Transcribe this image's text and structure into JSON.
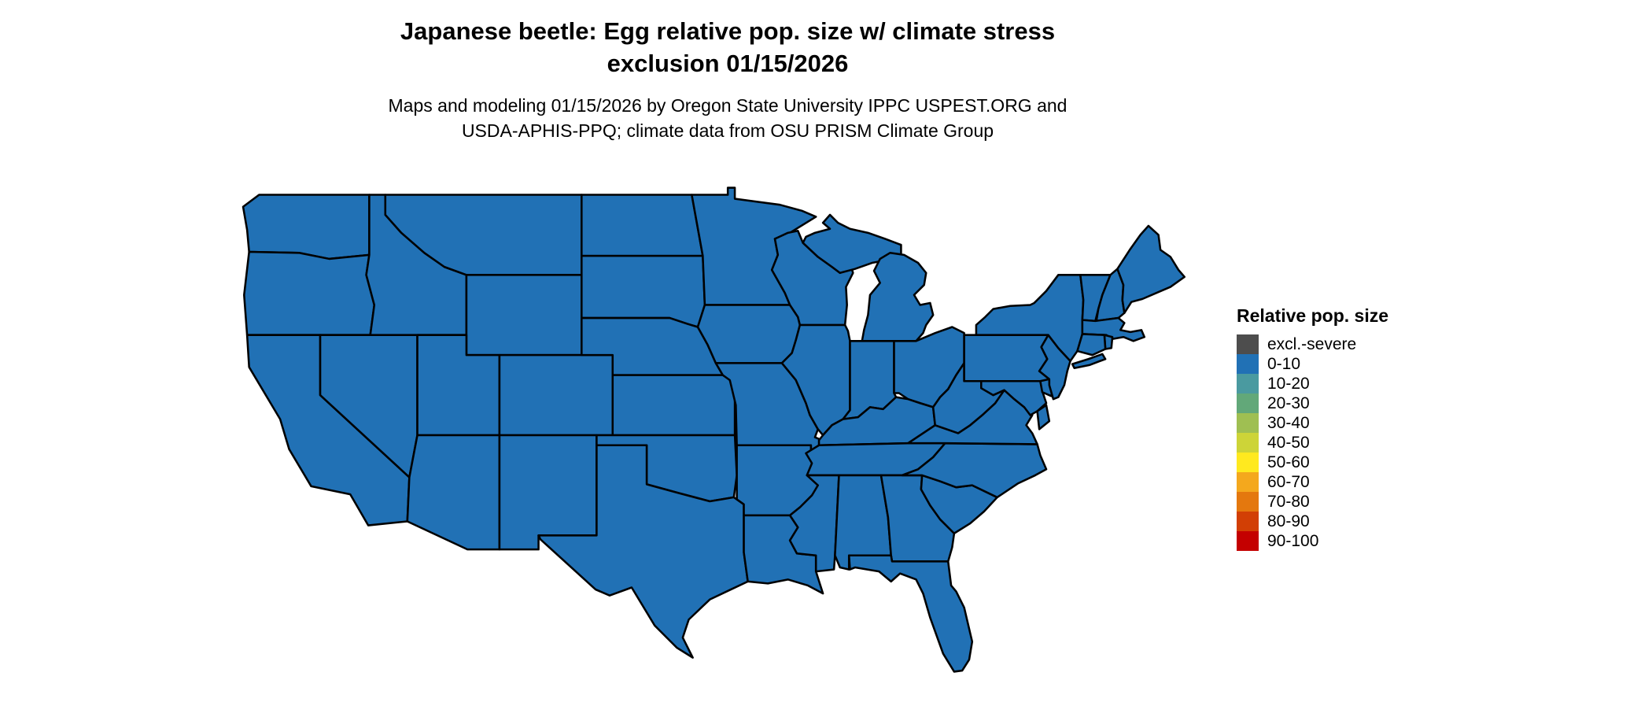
{
  "title": {
    "line1": "Japanese beetle: Egg relative pop. size w/ climate stress",
    "line2": "exclusion 01/15/2026"
  },
  "subtitle": {
    "line1": "Maps and modeling 01/15/2026 by Oregon State University IPPC USPEST.ORG and",
    "line2": "USDA-APHIS-PPQ; climate data from OSU PRISM Climate Group"
  },
  "legend": {
    "title": "Relative pop. size",
    "items": [
      {
        "label": "excl.-severe",
        "color": "#4d4d4d"
      },
      {
        "label": "0-10",
        "color": "#2171b5"
      },
      {
        "label": "10-20",
        "color": "#4a9aa0"
      },
      {
        "label": "20-30",
        "color": "#62a879"
      },
      {
        "label": "30-40",
        "color": "#9fbf52"
      },
      {
        "label": "40-50",
        "color": "#cdd438"
      },
      {
        "label": "50-60",
        "color": "#ffe91f"
      },
      {
        "label": "60-70",
        "color": "#f4a81d"
      },
      {
        "label": "70-80",
        "color": "#e4780e"
      },
      {
        "label": "80-90",
        "color": "#d23f05"
      },
      {
        "label": "90-100",
        "color": "#c40000"
      }
    ]
  },
  "map": {
    "region": "Conterminous United States",
    "fill_color": "#2171b5",
    "border_color": "#000000",
    "background": "#ffffff",
    "all_states_bin": "0-10"
  },
  "chart_data": {
    "type": "choropleth",
    "region": "Conterminous United States",
    "variable": "Japanese beetle egg relative population size with climate stress exclusion",
    "date": "01/15/2026",
    "bins": [
      "excl.-severe",
      "0-10",
      "10-20",
      "20-30",
      "30-40",
      "40-50",
      "50-60",
      "60-70",
      "70-80",
      "80-90",
      "90-100"
    ],
    "bin_colors": [
      "#4d4d4d",
      "#2171b5",
      "#4a9aa0",
      "#62a879",
      "#9fbf52",
      "#cdd438",
      "#ffe91f",
      "#f4a81d",
      "#e4780e",
      "#d23f05",
      "#c40000"
    ],
    "observed": "entire mapped area is displayed in the 0-10 bin (uniform blue)"
  }
}
